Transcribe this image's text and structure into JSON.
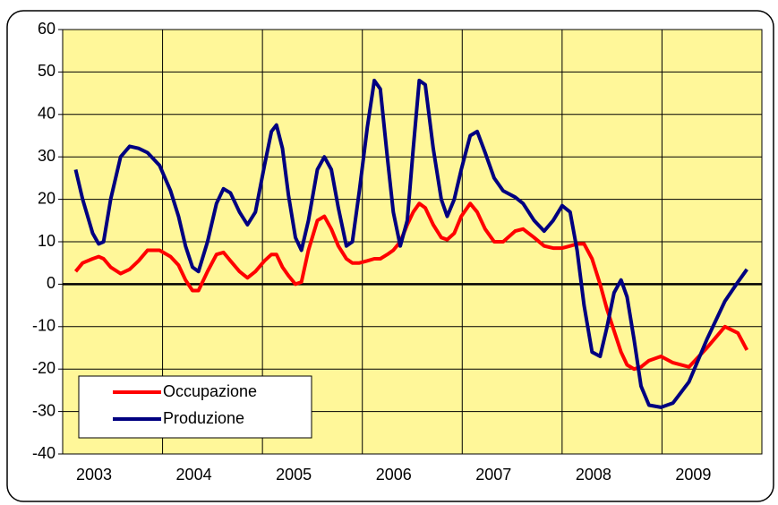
{
  "chart_data": {
    "type": "line",
    "x": [
      2003.13,
      2003.2,
      2003.3,
      2003.36,
      2003.41,
      2003.48,
      2003.58,
      2003.67,
      2003.76,
      2003.85,
      2003.97,
      2004.08,
      2004.16,
      2004.23,
      2004.3,
      2004.36,
      2004.45,
      2004.54,
      2004.61,
      2004.68,
      2004.77,
      2004.85,
      2004.93,
      2005.02,
      2005.09,
      2005.14,
      2005.2,
      2005.26,
      2005.33,
      2005.39,
      2005.46,
      2005.55,
      2005.62,
      2005.69,
      2005.76,
      2005.84,
      2005.9,
      2005.97,
      2006.05,
      2006.12,
      2006.18,
      2006.25,
      2006.31,
      2006.38,
      2006.45,
      2006.51,
      2006.57,
      2006.63,
      2006.71,
      2006.79,
      2006.85,
      2006.92,
      2006.99,
      2007.08,
      2007.15,
      2007.23,
      2007.32,
      2007.41,
      2007.53,
      2007.61,
      2007.72,
      2007.82,
      2007.91,
      2008.0,
      2008.08,
      2008.15,
      2008.22,
      2008.3,
      2008.38,
      2008.45,
      2008.52,
      2008.59,
      2008.65,
      2008.72,
      2008.79,
      2008.87,
      2008.99,
      2009.11,
      2009.27,
      2009.45,
      2009.63,
      2009.76,
      2009.85
    ],
    "series": [
      {
        "name": "Occupazione",
        "color": "#ff0000",
        "values": [
          3,
          5,
          6,
          6.5,
          6,
          4,
          2.5,
          3.5,
          5.5,
          8,
          8,
          6.5,
          4.5,
          1,
          -1.5,
          -1.5,
          3,
          7,
          7.5,
          5.5,
          3,
          1.5,
          3,
          5.5,
          7,
          7,
          4,
          2,
          0,
          0.5,
          8,
          15,
          16,
          13,
          9,
          6,
          5,
          5,
          5.5,
          6,
          6,
          7,
          8,
          10,
          14,
          17,
          19,
          18,
          14,
          11,
          10.5,
          12,
          16,
          19,
          17,
          13,
          10,
          10,
          12.5,
          13,
          11,
          9,
          8.5,
          8.5,
          9,
          9.5,
          9.5,
          6,
          0,
          -6,
          -11,
          -16,
          -19,
          -20,
          -19.5,
          -18,
          -17,
          -18.5,
          -19.5,
          -15,
          -10,
          -11.5,
          -15.5
        ]
      },
      {
        "name": "Produzione",
        "color": "#000080",
        "values": [
          27,
          20,
          12,
          9.5,
          10,
          20,
          30,
          32.5,
          32,
          31,
          28,
          22,
          16,
          9,
          4,
          3,
          10,
          19,
          22.5,
          21.5,
          17,
          14,
          17,
          28,
          36,
          37.5,
          32,
          21,
          11,
          8,
          15,
          27,
          30,
          27,
          18,
          9,
          10,
          22,
          37,
          48,
          46,
          30,
          17,
          9,
          15,
          32,
          48,
          47,
          32,
          20,
          16,
          20,
          27,
          35,
          36,
          31,
          25,
          22,
          20.5,
          19,
          15,
          12.5,
          15,
          18.5,
          17,
          8,
          -5,
          -16,
          -17,
          -10,
          -2,
          1,
          -3,
          -13,
          -24,
          -28.5,
          -29,
          -28,
          -23,
          -13,
          -4,
          0.5,
          3.5
        ]
      }
    ],
    "xlim": [
      2003,
      2010
    ],
    "xticks": [
      2003,
      2004,
      2005,
      2006,
      2007,
      2008,
      2009
    ],
    "ylim": [
      -40,
      60
    ],
    "yticks": [
      -40,
      -30,
      -20,
      -10,
      0,
      10,
      20,
      30,
      40,
      50,
      60
    ],
    "grid": true,
    "legend": "lower left",
    "plot_background": "#fff799"
  }
}
